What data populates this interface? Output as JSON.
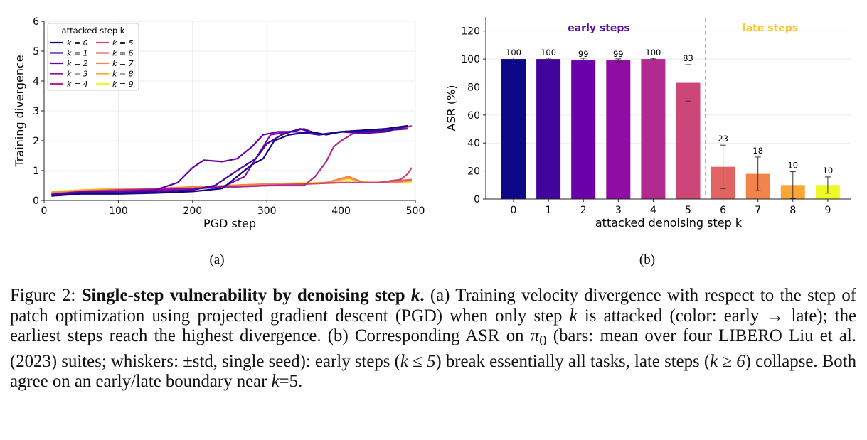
{
  "colors": {
    "k0": "#0d0887",
    "k1": "#41049d",
    "k2": "#6a00a8",
    "k3": "#8f0da4",
    "k4": "#b12a90",
    "k5": "#cc4778",
    "k6": "#e16462",
    "k7": "#f2844b",
    "k8": "#fca636",
    "k9": "#f0f921",
    "early_label": "#5a0fa8",
    "late_label": "#fdc527"
  },
  "panel_a_label": "(a)",
  "panel_b_label": "(b)",
  "caption": {
    "figure_no": "Figure 2:",
    "title_text": "Single-step vulnerability by denoising step",
    "title_var": "k",
    "body": [
      " (a) Training velocity divergence with respect to the step of patch optimization using projected gradient descent (PGD) when only step ",
      "k",
      " is attacked (color: early → late); the earliest steps reach the highest divergence. (b) Corresponding ASR on ",
      "π",
      "0",
      " (bars: mean over four LIBERO Liu et al. (2023) suites; whiskers: ±std, single seed): early steps (",
      "k ≤ 5",
      ") break essentially all tasks, late steps (",
      "k ≥ 6",
      ") collapse. Both agree on an early/late boundary near ",
      "k",
      "=5."
    ]
  },
  "chart_data": [
    {
      "type": "line",
      "xlabel": "PGD step",
      "ylabel": "Training divergence",
      "xlim": [
        0,
        500
      ],
      "ylim": [
        0,
        6
      ],
      "xticks": [
        0,
        100,
        200,
        300,
        400,
        500
      ],
      "yticks": [
        0,
        1,
        2,
        3,
        4,
        5,
        6
      ],
      "grid": true,
      "legend": {
        "placement": "top-left",
        "title": "attacked step k"
      },
      "series": [
        {
          "name": "k = 0",
          "points": [
            [
              10,
              0.15
            ],
            [
              50,
              0.22
            ],
            [
              100,
              0.22
            ],
            [
              150,
              0.25
            ],
            [
              200,
              0.3
            ],
            [
              240,
              0.4
            ],
            [
              260,
              0.8
            ],
            [
              280,
              1.2
            ],
            [
              295,
              1.4
            ],
            [
              310,
              2.0
            ],
            [
              330,
              2.2
            ],
            [
              360,
              2.3
            ],
            [
              380,
              2.2
            ],
            [
              400,
              2.3
            ],
            [
              430,
              2.35
            ],
            [
              460,
              2.4
            ],
            [
              490,
              2.5
            ]
          ]
        },
        {
          "name": "k = 1",
          "points": [
            [
              10,
              0.18
            ],
            [
              50,
              0.25
            ],
            [
              100,
              0.25
            ],
            [
              150,
              0.3
            ],
            [
              200,
              0.35
            ],
            [
              230,
              0.5
            ],
            [
              260,
              1.0
            ],
            [
              285,
              1.4
            ],
            [
              300,
              1.9
            ],
            [
              320,
              2.2
            ],
            [
              345,
              2.4
            ],
            [
              370,
              2.2
            ],
            [
              400,
              2.3
            ],
            [
              430,
              2.3
            ],
            [
              460,
              2.35
            ],
            [
              490,
              2.4
            ]
          ]
        },
        {
          "name": "k = 2",
          "points": [
            [
              10,
              0.2
            ],
            [
              50,
              0.28
            ],
            [
              100,
              0.3
            ],
            [
              150,
              0.35
            ],
            [
              180,
              0.6
            ],
            [
              200,
              1.1
            ],
            [
              215,
              1.35
            ],
            [
              240,
              1.3
            ],
            [
              260,
              1.4
            ],
            [
              280,
              1.8
            ],
            [
              295,
              2.2
            ],
            [
              315,
              2.3
            ],
            [
              340,
              2.3
            ],
            [
              370,
              2.2
            ],
            [
              400,
              2.3
            ],
            [
              430,
              2.25
            ],
            [
              460,
              2.3
            ],
            [
              490,
              2.5
            ]
          ]
        },
        {
          "name": "k = 3",
          "points": [
            [
              10,
              0.2
            ],
            [
              50,
              0.28
            ],
            [
              100,
              0.3
            ],
            [
              150,
              0.35
            ],
            [
              200,
              0.4
            ],
            [
              240,
              0.45
            ],
            [
              270,
              0.8
            ],
            [
              290,
              1.6
            ],
            [
              305,
              2.2
            ],
            [
              330,
              2.3
            ],
            [
              350,
              2.4
            ],
            [
              370,
              2.2
            ],
            [
              400,
              2.3
            ],
            [
              430,
              2.35
            ],
            [
              460,
              2.4
            ],
            [
              490,
              2.5
            ]
          ]
        },
        {
          "name": "k = 4",
          "points": [
            [
              10,
              0.2
            ],
            [
              50,
              0.3
            ],
            [
              100,
              0.35
            ],
            [
              150,
              0.38
            ],
            [
              200,
              0.4
            ],
            [
              250,
              0.45
            ],
            [
              300,
              0.5
            ],
            [
              350,
              0.5
            ],
            [
              365,
              0.8
            ],
            [
              380,
              1.3
            ],
            [
              390,
              1.8
            ],
            [
              400,
              2.0
            ],
            [
              420,
              2.3
            ],
            [
              450,
              2.3
            ],
            [
              480,
              2.4
            ],
            [
              495,
              2.5
            ]
          ]
        },
        {
          "name": "k = 5",
          "points": [
            [
              10,
              0.2
            ],
            [
              50,
              0.3
            ],
            [
              100,
              0.35
            ],
            [
              150,
              0.35
            ],
            [
              200,
              0.4
            ],
            [
              250,
              0.45
            ],
            [
              300,
              0.5
            ],
            [
              350,
              0.55
            ],
            [
              400,
              0.6
            ],
            [
              450,
              0.6
            ],
            [
              480,
              0.7
            ],
            [
              490,
              0.9
            ],
            [
              495,
              1.1
            ]
          ]
        },
        {
          "name": "k = 6",
          "points": [
            [
              10,
              0.22
            ],
            [
              50,
              0.3
            ],
            [
              100,
              0.35
            ],
            [
              150,
              0.38
            ],
            [
              200,
              0.4
            ],
            [
              250,
              0.45
            ],
            [
              300,
              0.5
            ],
            [
              350,
              0.55
            ],
            [
              400,
              0.6
            ],
            [
              450,
              0.6
            ],
            [
              495,
              0.7
            ]
          ]
        },
        {
          "name": "k = 7",
          "points": [
            [
              10,
              0.25
            ],
            [
              50,
              0.32
            ],
            [
              100,
              0.35
            ],
            [
              150,
              0.4
            ],
            [
              200,
              0.45
            ],
            [
              250,
              0.5
            ],
            [
              300,
              0.55
            ],
            [
              350,
              0.55
            ],
            [
              380,
              0.6
            ],
            [
              410,
              0.8
            ],
            [
              430,
              0.6
            ],
            [
              470,
              0.6
            ],
            [
              495,
              0.7
            ]
          ]
        },
        {
          "name": "k = 8",
          "points": [
            [
              10,
              0.28
            ],
            [
              50,
              0.35
            ],
            [
              100,
              0.38
            ],
            [
              150,
              0.4
            ],
            [
              200,
              0.45
            ],
            [
              250,
              0.5
            ],
            [
              300,
              0.55
            ],
            [
              350,
              0.55
            ],
            [
              380,
              0.6
            ],
            [
              410,
              0.75
            ],
            [
              430,
              0.6
            ],
            [
              470,
              0.6
            ],
            [
              495,
              0.65
            ]
          ]
        },
        {
          "name": "k = 9",
          "points": [
            [
              10,
              0.3
            ],
            [
              50,
              0.35
            ],
            [
              100,
              0.4
            ],
            [
              150,
              0.4
            ],
            [
              200,
              0.45
            ],
            [
              250,
              0.5
            ],
            [
              300,
              0.55
            ],
            [
              350,
              0.6
            ],
            [
              380,
              0.6
            ],
            [
              410,
              0.7
            ],
            [
              440,
              0.6
            ],
            [
              470,
              0.65
            ],
            [
              495,
              0.6
            ]
          ]
        }
      ]
    },
    {
      "type": "bar",
      "xlabel": "attacked denoising step k",
      "ylabel": "ASR (%)",
      "ylim": [
        0,
        130
      ],
      "yticks": [
        0,
        20,
        40,
        60,
        80,
        100,
        120
      ],
      "grid": true,
      "categories": [
        "0",
        "1",
        "2",
        "3",
        "4",
        "5",
        "6",
        "7",
        "8",
        "9"
      ],
      "values": [
        100,
        100,
        99,
        99,
        100,
        83,
        23,
        18,
        10,
        10
      ],
      "value_labels": [
        "100",
        "100",
        "99",
        "99",
        "100",
        "83",
        "23",
        "18",
        "10",
        "10"
      ],
      "std": [
        0.8,
        0.6,
        1.6,
        1.1,
        0.5,
        13,
        15.5,
        12,
        9.5,
        5.8
      ],
      "boundary_after_index": 5,
      "annotations": {
        "early": "early steps",
        "late": "late steps"
      }
    }
  ]
}
